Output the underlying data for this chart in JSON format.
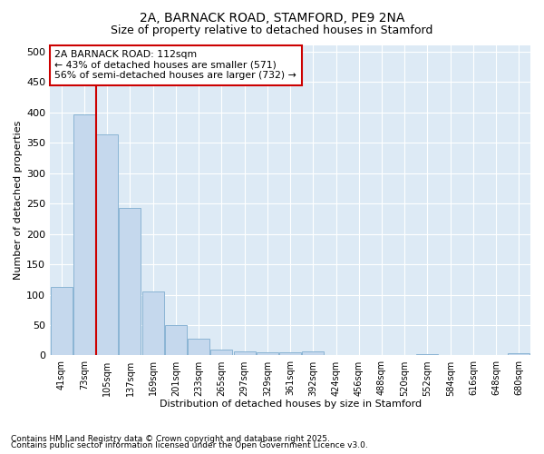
{
  "title1": "2A, BARNACK ROAD, STAMFORD, PE9 2NA",
  "title2": "Size of property relative to detached houses in Stamford",
  "xlabel": "Distribution of detached houses by size in Stamford",
  "ylabel": "Number of detached properties",
  "categories": [
    "41sqm",
    "73sqm",
    "105sqm",
    "137sqm",
    "169sqm",
    "201sqm",
    "233sqm",
    "265sqm",
    "297sqm",
    "329sqm",
    "361sqm",
    "392sqm",
    "424sqm",
    "456sqm",
    "488sqm",
    "520sqm",
    "552sqm",
    "584sqm",
    "616sqm",
    "648sqm",
    "680sqm"
  ],
  "values": [
    112,
    397,
    363,
    243,
    105,
    50,
    28,
    9,
    7,
    5,
    5,
    7,
    0,
    1,
    0,
    0,
    2,
    0,
    0,
    0,
    3
  ],
  "bar_color": "#c5d8ed",
  "bar_edge_color": "#8ab4d4",
  "red_line_x": 1.5,
  "annotation_text": "2A BARNACK ROAD: 112sqm\n← 43% of detached houses are smaller (571)\n56% of semi-detached houses are larger (732) →",
  "annotation_box_color": "#ffffff",
  "annotation_box_edge_color": "#cc0000",
  "red_line_color": "#cc0000",
  "footnote1": "Contains HM Land Registry data © Crown copyright and database right 2025.",
  "footnote2": "Contains public sector information licensed under the Open Government Licence v3.0.",
  "bg_color": "#ffffff",
  "plot_bg_color": "#ddeaf5",
  "grid_color": "#ffffff",
  "ylim": [
    0,
    510
  ],
  "yticks": [
    0,
    50,
    100,
    150,
    200,
    250,
    300,
    350,
    400,
    450,
    500
  ]
}
